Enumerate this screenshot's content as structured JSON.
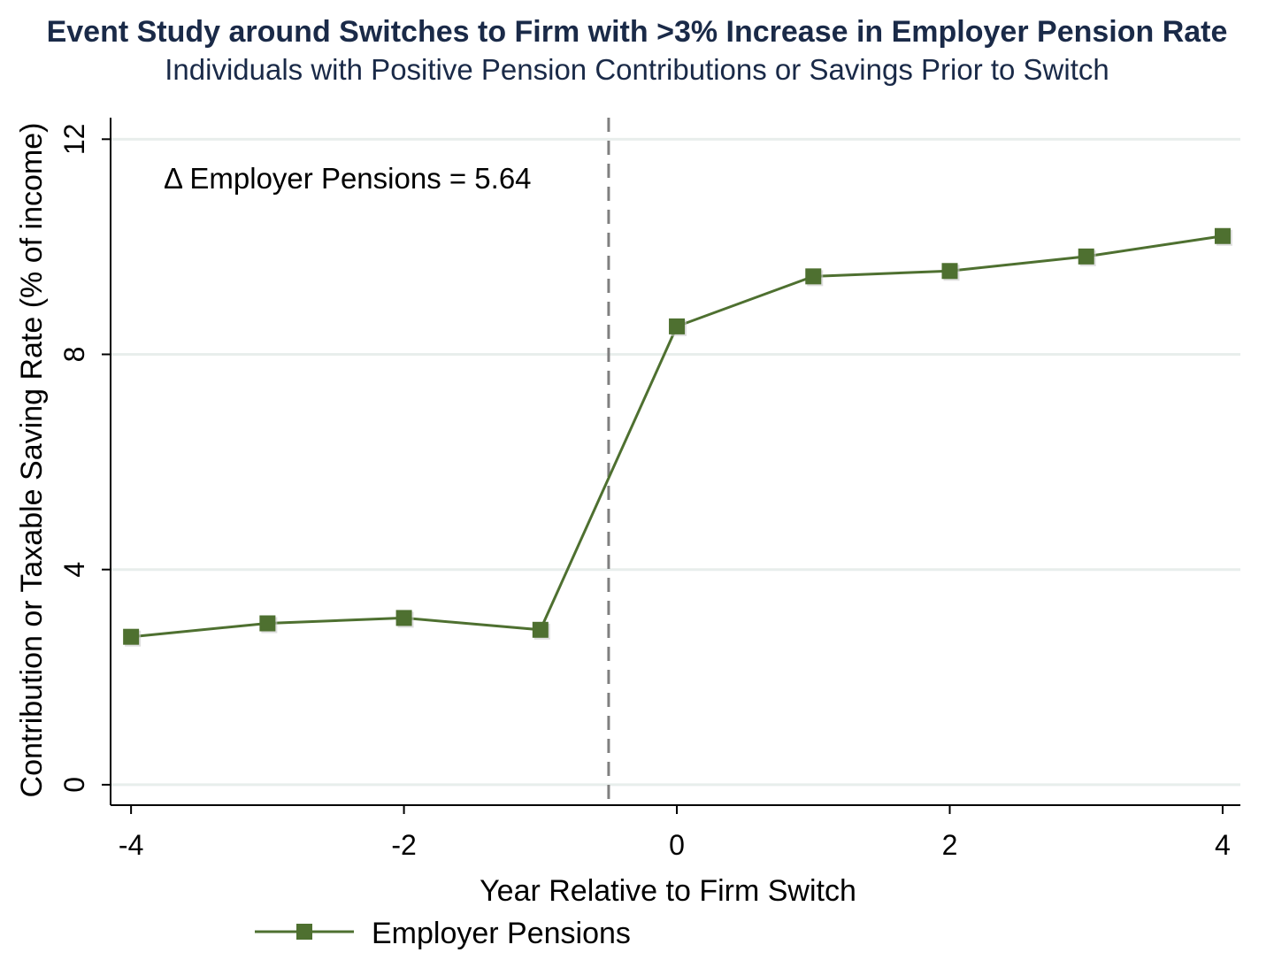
{
  "chart_data": {
    "type": "line",
    "title": "Event Study around Switches to Firm with >3% Increase in Employer Pension Rate",
    "subtitle": "Individuals with Positive Pension Contributions or Savings Prior to Switch",
    "xlabel": "Year Relative to Firm Switch",
    "ylabel": "Contribution or Taxable Saving Rate (% of income)",
    "xlim": [
      -4.15,
      4.13
    ],
    "ylim": [
      -0.38,
      12.4
    ],
    "x_ticks": [
      -4,
      -2,
      0,
      2,
      4
    ],
    "x_tick_labels": [
      "-4",
      "-2",
      "0",
      "2",
      "4"
    ],
    "y_ticks": [
      0,
      4,
      8,
      12
    ],
    "y_tick_labels": [
      "0",
      "4",
      "8",
      "12"
    ],
    "grid": "horizontal",
    "event_line_x": -0.5,
    "annotation": "Δ Employer Pensions = 5.64",
    "legend_placement": "bottom",
    "series": [
      {
        "name": "Employer Pensions",
        "color": "#4e7030",
        "marker": "square",
        "x": [
          -4,
          -3,
          -2,
          -1,
          0,
          1,
          2,
          3,
          4
        ],
        "y": [
          2.75,
          3.0,
          3.1,
          2.88,
          8.52,
          9.45,
          9.55,
          9.82,
          10.2
        ]
      }
    ],
    "colors": {
      "title": "#1a2a48",
      "grid": "#e8eeec",
      "axis": "#000000",
      "event_line": "#7f7f7f"
    }
  }
}
